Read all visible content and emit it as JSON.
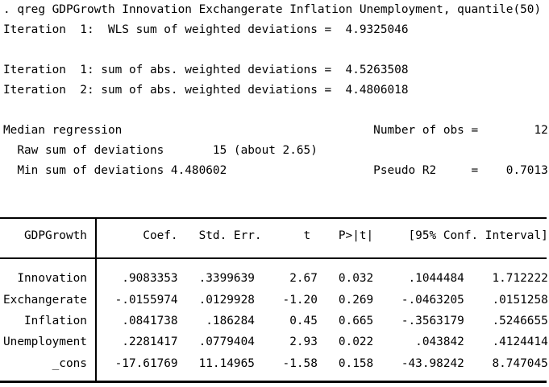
{
  "window": {
    "background_color": "#ffffff",
    "text_color": "#000000",
    "rule_color": "#000000"
  },
  "command": ". qreg GDPGrowth Innovation Exchangerate Inflation Unemployment, quantile(50)",
  "iteration_log": {
    "wls": "Iteration  1:  WLS sum of weighted deviations =  4.9325046",
    "abs1": "Iteration  1: sum of abs. weighted deviations =  4.5263508",
    "abs2": "Iteration  2: sum of abs. weighted deviations =  4.4806018"
  },
  "model_summary": {
    "title": "Median regression",
    "obs_label": "Number of obs =",
    "obs_value": "12",
    "raw_sum_label": "  Raw sum of deviations",
    "raw_sum_value": "15",
    "raw_sum_note": "(about 2.65)",
    "min_sum_label": "  Min sum of deviations",
    "min_sum_value": "4.480602",
    "pseudo_r2_label": "Pseudo R2",
    "pseudo_r2_value": "0.7013"
  },
  "table": {
    "depvar": "GDPGrowth",
    "headers": [
      "Coef.",
      "Std. Err.",
      "t",
      "P>|t|",
      "[95% Conf. Interval]"
    ],
    "rows": [
      {
        "var": "Innovation",
        "coef": ".9083353",
        "std_err": ".3399639",
        "t": "2.67",
        "p": "0.032",
        "ci_low": ".1044484",
        "ci_high": "1.712222"
      },
      {
        "var": "Exchangerate",
        "coef": "-.0155974",
        "std_err": ".0129928",
        "t": "-1.20",
        "p": "0.269",
        "ci_low": "-.0463205",
        "ci_high": ".0151258"
      },
      {
        "var": "Inflation",
        "coef": ".0841738",
        "std_err": ".186284",
        "t": "0.45",
        "p": "0.665",
        "ci_low": "-.3563179",
        "ci_high": ".5246655"
      },
      {
        "var": "Unemployment",
        "coef": ".2281417",
        "std_err": ".0779404",
        "t": "2.93",
        "p": "0.022",
        "ci_low": ".043842",
        "ci_high": ".4124414"
      },
      {
        "var": "_cons",
        "coef": "-17.61769",
        "std_err": "11.14965",
        "t": "-1.58",
        "p": "0.158",
        "ci_low": "-43.98242",
        "ci_high": "8.747045"
      }
    ]
  }
}
